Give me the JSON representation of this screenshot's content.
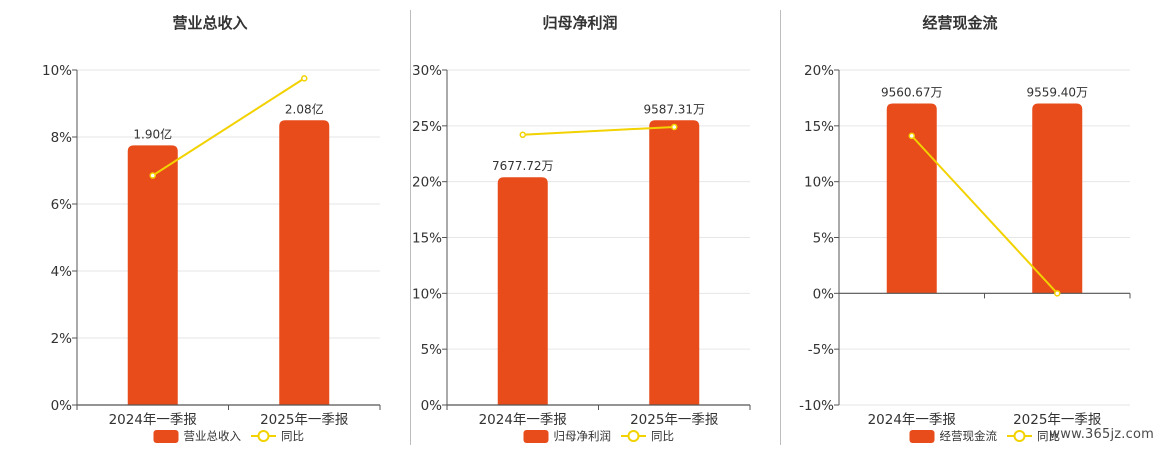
{
  "colors": {
    "bar": "#e84c1a",
    "line": "#f2d200",
    "grid": "#e6e6e6",
    "axis": "#555555"
  },
  "chart_data": [
    {
      "type": "bar",
      "title": "营业总收入",
      "categories": [
        "2024年一季报",
        "2025年一季报"
      ],
      "series": [
        {
          "name": "营业总收入",
          "values": [
            1.9,
            2.08
          ],
          "data_labels": [
            "1.90亿",
            "2.08亿"
          ]
        },
        {
          "name": "同比",
          "type": "line",
          "values": [
            6.85,
            9.75
          ]
        }
      ],
      "yticks": [
        "0%",
        "2%",
        "4%",
        "6%",
        "8%",
        "10%"
      ],
      "ylim": [
        0,
        10
      ],
      "bar_values_in_axis_units": [
        7.75,
        8.5
      ],
      "grid": true,
      "legend": "bottom-center"
    },
    {
      "type": "bar",
      "title": "归母净利润",
      "categories": [
        "2024年一季报",
        "2025年一季报"
      ],
      "series": [
        {
          "name": "归母净利润",
          "values": [
            7677.72,
            9587.31
          ],
          "data_labels": [
            "7677.72万",
            "9587.31万"
          ]
        },
        {
          "name": "同比",
          "type": "line",
          "values": [
            24.2,
            24.9
          ]
        }
      ],
      "yticks": [
        "0%",
        "5%",
        "10%",
        "15%",
        "20%",
        "25%",
        "30%"
      ],
      "ylim": [
        0,
        30
      ],
      "bar_values_in_axis_units": [
        20.4,
        25.5
      ],
      "grid": true,
      "legend": "bottom-center"
    },
    {
      "type": "bar",
      "title": "经营现金流",
      "categories": [
        "2024年一季报",
        "2025年一季报"
      ],
      "series": [
        {
          "name": "经营现金流",
          "values": [
            9560.67,
            9559.4
          ],
          "data_labels": [
            "9560.67万",
            "9559.40万"
          ]
        },
        {
          "name": "同比",
          "type": "line",
          "values": [
            14.1,
            0.0
          ]
        }
      ],
      "yticks": [
        "-10%",
        "-5%",
        "0%",
        "5%",
        "10%",
        "15%",
        "20%"
      ],
      "ylim": [
        -10,
        20
      ],
      "bar_values_in_axis_units": [
        17.0,
        17.0
      ],
      "grid": true,
      "legend": "bottom-center"
    }
  ],
  "watermark": "www.365jz.com"
}
